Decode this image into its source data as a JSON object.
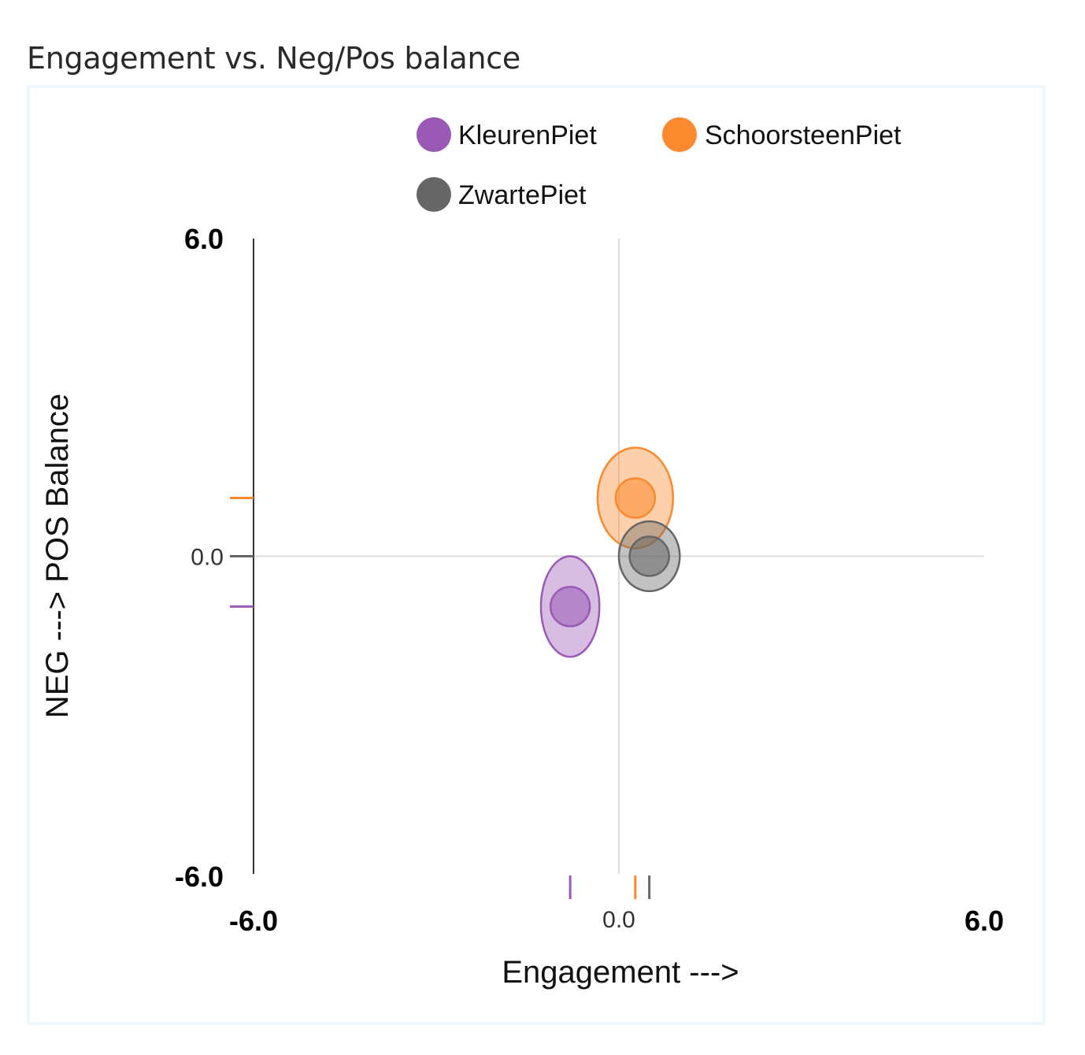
{
  "page": {
    "title": "Engagement vs. Neg/Pos balance"
  },
  "chart_data": {
    "type": "scatter",
    "title": "Engagement vs. Neg/Pos balance",
    "xlabel": "Engagement --->",
    "ylabel": "NEG ---> POS Balance",
    "xlim": [
      -6.0,
      6.0
    ],
    "ylim": [
      -6.0,
      6.0
    ],
    "x_ticks": {
      "min": "-6.0",
      "zero": "0.0",
      "max": "6.0"
    },
    "y_ticks": {
      "min": "-6.0",
      "zero": "0.0",
      "max": "6.0"
    },
    "legend_position": "top",
    "series": [
      {
        "name": "KleurenPiet",
        "color": "#9b59b6",
        "x": -0.8,
        "y": -0.95,
        "x_spread": 0.48,
        "y_spread": 0.95
      },
      {
        "name": "SchoorsteenPiet",
        "color": "#fb8a2e",
        "x": 0.27,
        "y": 1.1,
        "x_spread": 0.62,
        "y_spread": 0.95
      },
      {
        "name": "ZwartePiet",
        "color": "#666666",
        "x": 0.5,
        "y": 0.0,
        "x_spread": 0.5,
        "y_spread": 0.66
      }
    ]
  }
}
